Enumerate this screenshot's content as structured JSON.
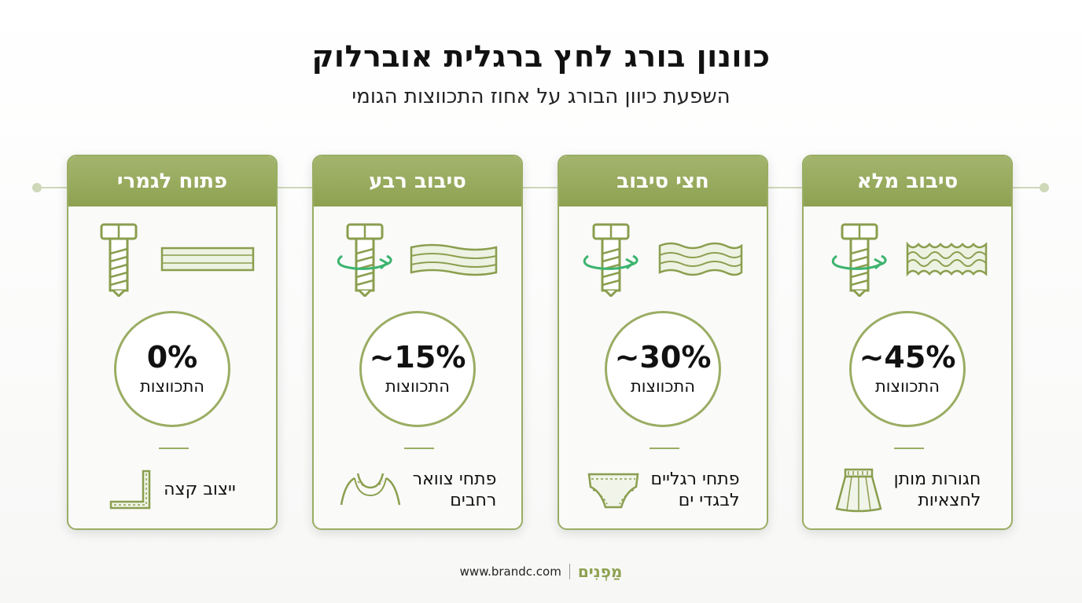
{
  "header": {
    "title": "כוונון בורג לחץ ברגלית אוברלוק",
    "subtitle": "השפעת כיוון הבורג על אחוז התכווצות הגומי"
  },
  "colors": {
    "accent": "#9aad63",
    "header": "#8ea151",
    "arrow": "#3cb46e"
  },
  "cards": [
    {
      "heading": "סיבוב מלא",
      "percent": "~45%",
      "percent_label": "התכווצות",
      "usage": "חגורות מותן\nלחצאיות",
      "icons": [
        "screw-icon",
        "rotation-arrow-icon",
        "wavy-fabric-icon",
        "skirt-icon"
      ],
      "gather_level": 3
    },
    {
      "heading": "חצי סיבוב",
      "percent": "~30%",
      "percent_label": "התכווצות",
      "usage": "פתחי רגליים\nלבגדי ים",
      "icons": [
        "screw-icon",
        "rotation-arrow-icon",
        "wavy-fabric-icon",
        "swim-brief-icon"
      ],
      "gather_level": 2
    },
    {
      "heading": "סיבוב רבע",
      "percent": "~15%",
      "percent_label": "התכווצות",
      "usage": "פתחי צוואר\nרחבים",
      "icons": [
        "screw-icon",
        "rotation-arrow-icon",
        "wavy-fabric-icon",
        "neckline-icon"
      ],
      "gather_level": 1
    },
    {
      "heading": "פתוח לגמרי",
      "percent": "0%",
      "percent_label": "התכווצות",
      "usage": "ייצוב קצה",
      "icons": [
        "screw-icon",
        "flat-fabric-icon",
        "edge-stitch-icon"
      ],
      "gather_level": 0
    }
  ],
  "footer": {
    "brand": "מַפְנִים",
    "url": "www.brandc.com"
  }
}
